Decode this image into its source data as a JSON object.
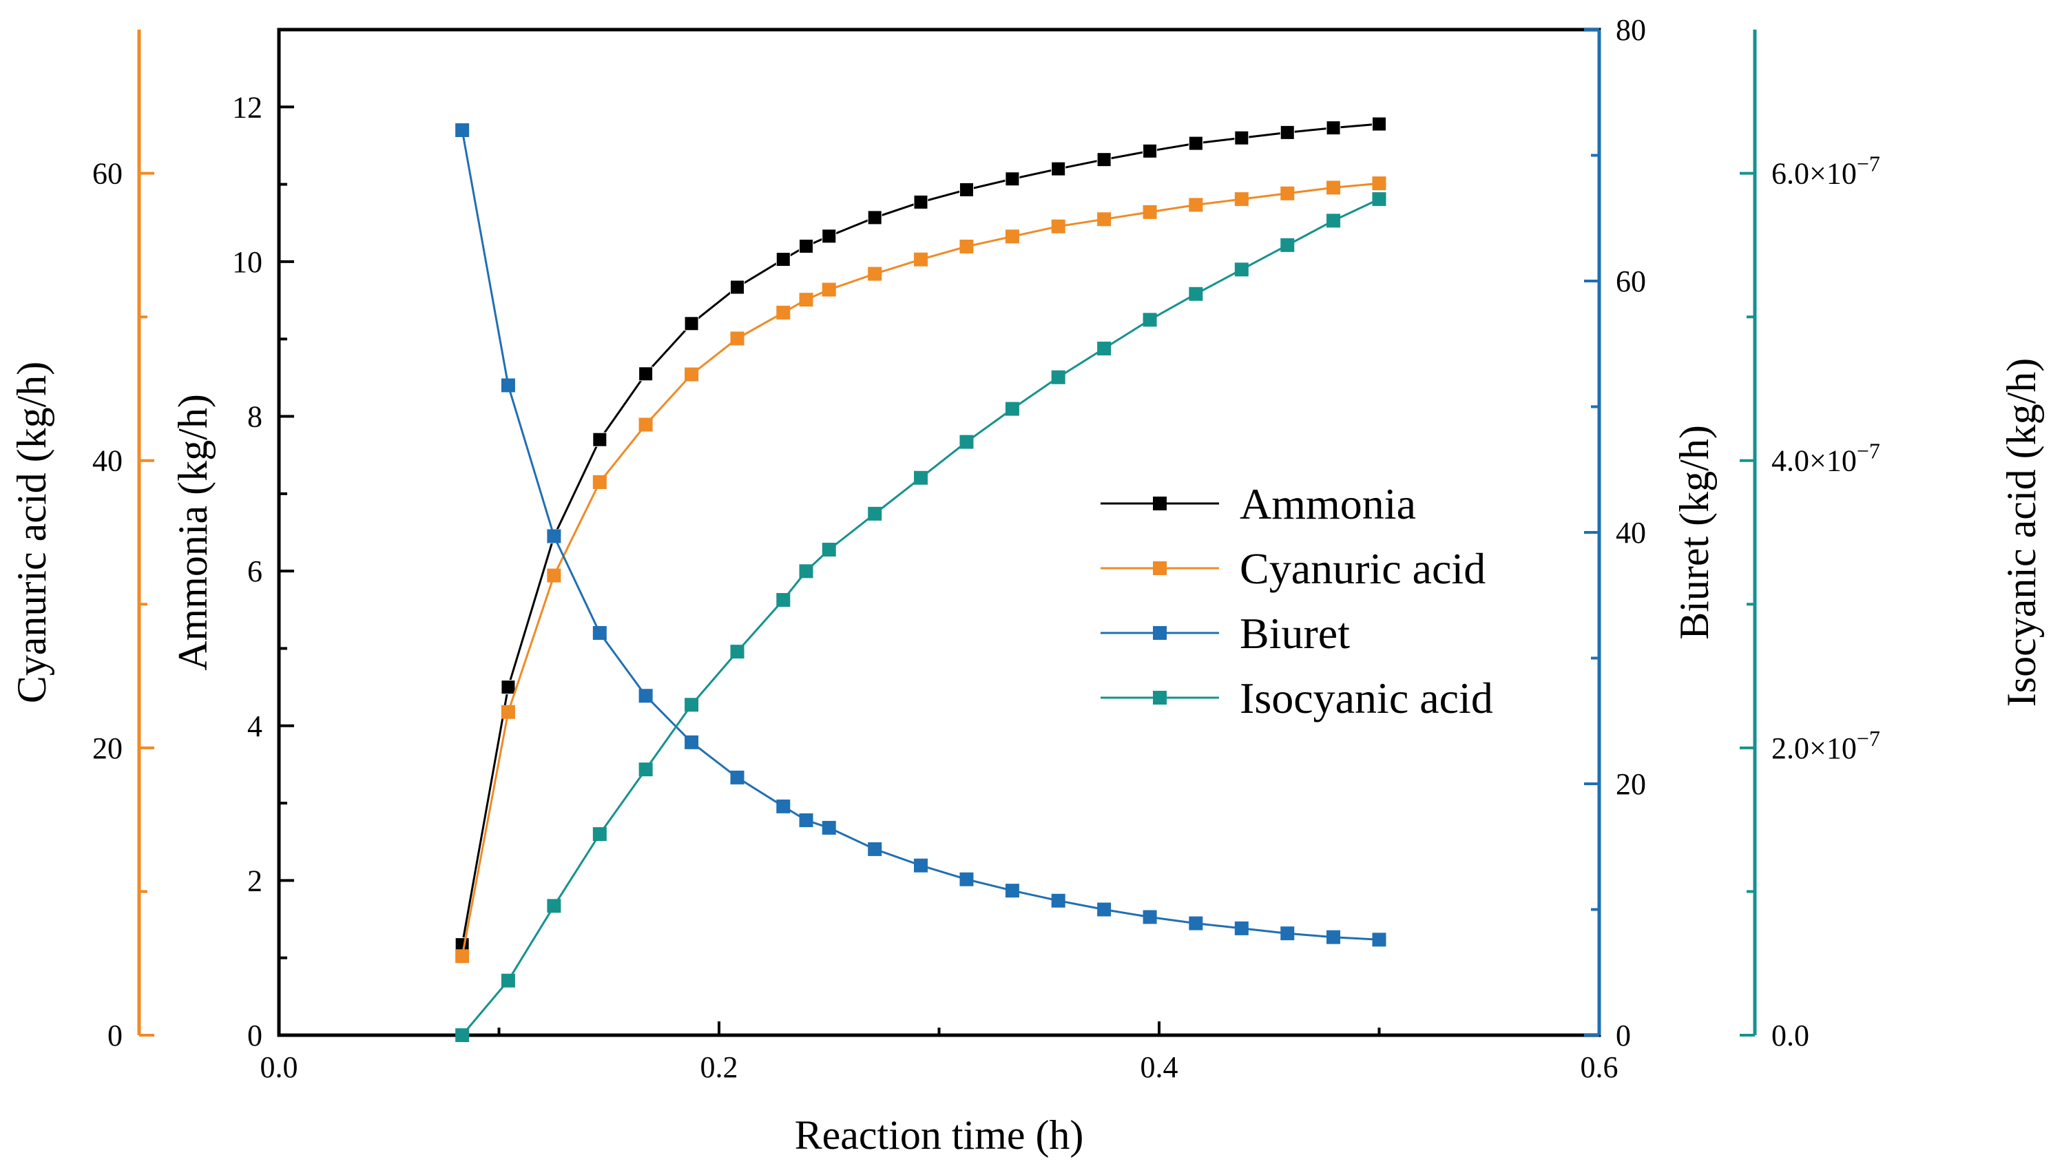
{
  "chart_data": {
    "type": "line",
    "xlabel": "Reaction time (h)",
    "xlim": [
      0.0,
      0.6
    ],
    "x_ticks": [
      "0.0",
      "0.2",
      "0.4",
      "0.6"
    ],
    "x": [
      0.0833,
      0.1042,
      0.125,
      0.1458,
      0.1667,
      0.1875,
      0.2083,
      0.2292,
      0.2396,
      0.25,
      0.2708,
      0.2917,
      0.3125,
      0.3333,
      0.3542,
      0.375,
      0.3958,
      0.4167,
      0.4375,
      0.4583,
      0.4792,
      0.5
    ],
    "axes": {
      "cyanuric": {
        "label": "Cyanuric acid (kg/h)",
        "range": [
          0,
          70
        ],
        "ticks": [
          "0",
          "20",
          "40",
          "60"
        ],
        "color": "#f08a24"
      },
      "ammonia": {
        "label": "Ammonia (kg/h)",
        "range": [
          0,
          13
        ],
        "ticks": [
          "0",
          "2",
          "4",
          "6",
          "8",
          "10",
          "12"
        ],
        "color": "#000000"
      },
      "biuret": {
        "label": "Biuret (kg/h)",
        "range": [
          0,
          80
        ],
        "ticks": [
          "0",
          "20",
          "40",
          "60",
          "80"
        ],
        "color": "#1f6fb4"
      },
      "isocyanic": {
        "label": "Isocyanic acid (kg/h)",
        "range": [
          0,
          7e-07
        ],
        "ticks": [
          "0.0",
          "2.0×10",
          "4.0×10",
          "6.0×10"
        ],
        "tick_exponent": "−7",
        "color": "#16928c"
      }
    },
    "series": [
      {
        "name": "Ammonia",
        "axis": "ammonia",
        "color": "#000000",
        "values": [
          1.17,
          4.5,
          6.45,
          7.7,
          8.55,
          9.2,
          9.67,
          10.03,
          10.2,
          10.33,
          10.57,
          10.77,
          10.93,
          11.07,
          11.2,
          11.32,
          11.43,
          11.53,
          11.6,
          11.67,
          11.73,
          11.78
        ]
      },
      {
        "name": "Cyanuric acid",
        "axis": "cyanuric",
        "color": "#f08a24",
        "values": [
          5.5,
          22.5,
          32.0,
          38.5,
          42.5,
          46.0,
          48.5,
          50.3,
          51.2,
          51.9,
          53.0,
          54.0,
          54.9,
          55.6,
          56.3,
          56.8,
          57.3,
          57.8,
          58.2,
          58.6,
          59.0,
          59.3
        ]
      },
      {
        "name": "Biuret",
        "axis": "biuret",
        "color": "#1f6fb4",
        "values": [
          72.0,
          51.7,
          39.7,
          32.0,
          27.0,
          23.3,
          20.5,
          18.2,
          17.1,
          16.5,
          14.8,
          13.5,
          12.4,
          11.5,
          10.7,
          10.0,
          9.4,
          8.9,
          8.5,
          8.1,
          7.8,
          7.6
        ]
      },
      {
        "name": "Isocyanic acid",
        "axis": "isocyanic",
        "color": "#16928c",
        "values": [
          0.0,
          3.8e-08,
          9e-08,
          1.4e-07,
          1.85e-07,
          2.3e-07,
          2.67e-07,
          3.03e-07,
          3.23e-07,
          3.38e-07,
          3.63e-07,
          3.88e-07,
          4.13e-07,
          4.36e-07,
          4.58e-07,
          4.78e-07,
          4.98e-07,
          5.16e-07,
          5.33e-07,
          5.5e-07,
          5.67e-07,
          5.82e-07
        ]
      }
    ],
    "legend": {
      "position": "center-right",
      "entries": [
        "Ammonia",
        "Cyanuric acid",
        "Biuret",
        "Isocyanic acid"
      ]
    },
    "grid": false
  }
}
